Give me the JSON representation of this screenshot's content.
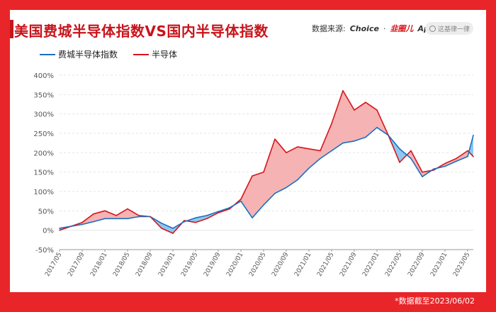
{
  "header": {
    "title": "美国费城半导体指数VS国内半导体指数",
    "source_label": "数据来源:",
    "source_choice": "Choice",
    "source_app_red": "韭圈儿",
    "source_app": "App",
    "search_placeholder": "这基律一律",
    "watermark": "韭圈儿"
  },
  "footnote": "*数据截至2023/06/02",
  "colors": {
    "sox": "#1a6fc2",
    "cn": "#d8141b",
    "fill_cn_above": "#f5b3b3",
    "fill_sox_above": "#8ec8ee",
    "brand": "#e8262a"
  },
  "chart_data": {
    "type": "line",
    "title": "美国费城半导体指数VS国内半导体指数",
    "ylim": [
      -50,
      400
    ],
    "ytick_labels": [
      "400%",
      "350%",
      "300%",
      "250%",
      "200%",
      "150%",
      "100%",
      "50%",
      "0%",
      "-50%"
    ],
    "ytick_values": [
      400,
      350,
      300,
      250,
      200,
      150,
      100,
      50,
      0,
      -50
    ],
    "xtick_labels": [
      "2017/05",
      "2017/09",
      "2018/01",
      "2018/05",
      "2018/09",
      "2019/01",
      "2019/05",
      "2019/09",
      "2020/01",
      "2020/05",
      "2020/09",
      "2021/01",
      "2021/05",
      "2021/09",
      "2022/01",
      "2022/05",
      "2022/09",
      "2023/01",
      "2023/05"
    ],
    "grid": true,
    "legend_position": "top-left",
    "series": [
      {
        "name": "费城半导体指数",
        "color": "#1a6fc2",
        "x": [
          "2017/05",
          "2017/07",
          "2017/09",
          "2017/11",
          "2018/01",
          "2018/03",
          "2018/05",
          "2018/07",
          "2018/09",
          "2018/11",
          "2019/01",
          "2019/03",
          "2019/05",
          "2019/07",
          "2019/09",
          "2019/11",
          "2020/01",
          "2020/03",
          "2020/05",
          "2020/07",
          "2020/09",
          "2020/11",
          "2021/01",
          "2021/03",
          "2021/05",
          "2021/07",
          "2021/09",
          "2021/11",
          "2022/01",
          "2022/03",
          "2022/05",
          "2022/07",
          "2022/09",
          "2022/11",
          "2023/01",
          "2023/03",
          "2023/05",
          "2023/06"
        ],
        "values": [
          5,
          10,
          15,
          22,
          30,
          30,
          30,
          35,
          35,
          18,
          5,
          22,
          32,
          38,
          48,
          58,
          75,
          32,
          65,
          95,
          110,
          130,
          160,
          185,
          205,
          225,
          230,
          240,
          265,
          245,
          210,
          185,
          138,
          158,
          165,
          178,
          190,
          245
        ]
      },
      {
        "name": "半导体",
        "color": "#d8141b",
        "x": [
          "2017/05",
          "2017/07",
          "2017/09",
          "2017/11",
          "2018/01",
          "2018/03",
          "2018/05",
          "2018/07",
          "2018/09",
          "2018/11",
          "2019/01",
          "2019/03",
          "2019/05",
          "2019/07",
          "2019/09",
          "2019/11",
          "2020/01",
          "2020/03",
          "2020/05",
          "2020/07",
          "2020/09",
          "2020/11",
          "2021/01",
          "2021/03",
          "2021/05",
          "2021/07",
          "2021/09",
          "2021/11",
          "2022/01",
          "2022/03",
          "2022/05",
          "2022/07",
          "2022/09",
          "2022/11",
          "2023/01",
          "2023/03",
          "2023/05",
          "2023/06"
        ],
        "values": [
          0,
          10,
          20,
          42,
          50,
          38,
          55,
          38,
          35,
          5,
          -8,
          25,
          20,
          30,
          45,
          55,
          80,
          140,
          150,
          235,
          200,
          215,
          210,
          205,
          275,
          360,
          310,
          330,
          310,
          245,
          175,
          205,
          150,
          155,
          172,
          185,
          205,
          190
        ]
      }
    ]
  }
}
